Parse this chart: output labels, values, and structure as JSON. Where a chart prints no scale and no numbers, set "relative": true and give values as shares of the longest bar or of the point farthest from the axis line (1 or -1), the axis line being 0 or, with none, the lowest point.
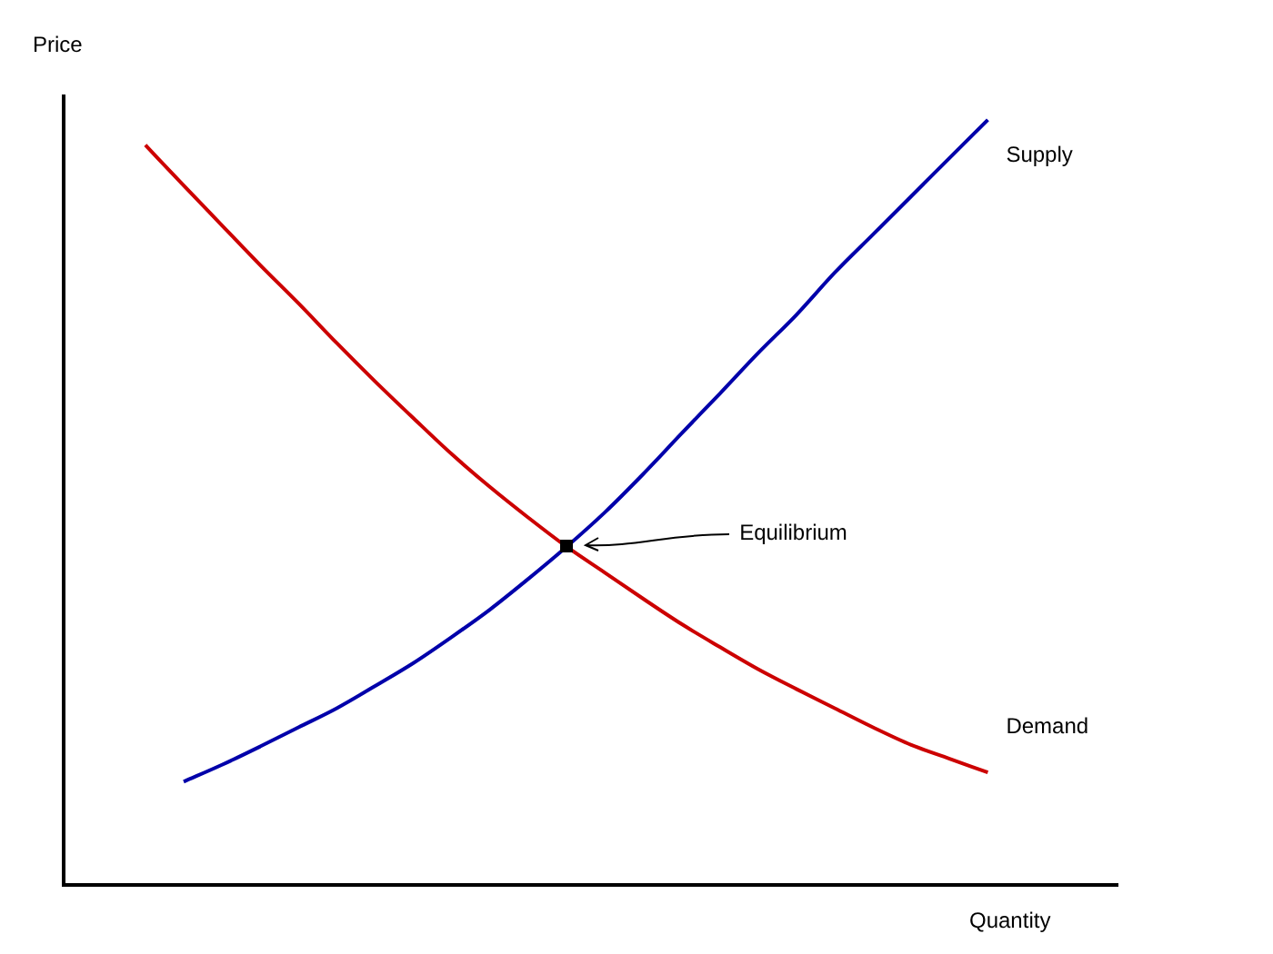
{
  "chart_data": {
    "type": "line",
    "relative": true,
    "xlabel": "Quantity",
    "ylabel": "Price",
    "categories": [
      null,
      null,
      null,
      null,
      null,
      null,
      null,
      null,
      null,
      null,
      null,
      null,
      null,
      null,
      null,
      null,
      null,
      null,
      null,
      null,
      null,
      null,
      null
    ],
    "series": [
      {
        "name": "Supply",
        "color": "#0000aa",
        "values": [
          null,
          0.135,
          0.157,
          0.181,
          0.206,
          0.231,
          0.26,
          0.29,
          0.324,
          0.36,
          0.4,
          0.442,
          0.487,
          0.537,
          0.59,
          0.642,
          0.695,
          0.745,
          0.8,
          0.85,
          0.9,
          0.95,
          1
        ]
      },
      {
        "name": "Demand",
        "color": "#cc0000",
        "values": [
          0.967,
          0.914,
          0.862,
          0.81,
          0.76,
          0.708,
          0.658,
          0.61,
          0.563,
          0.52,
          0.48,
          0.442,
          0.408,
          0.374,
          0.341,
          0.311,
          0.282,
          0.256,
          0.231,
          0.206,
          0.183,
          0.165,
          0.147
        ]
      }
    ],
    "annotations": [
      "Equilibrium"
    ],
    "legend": false,
    "marker": "none"
  }
}
